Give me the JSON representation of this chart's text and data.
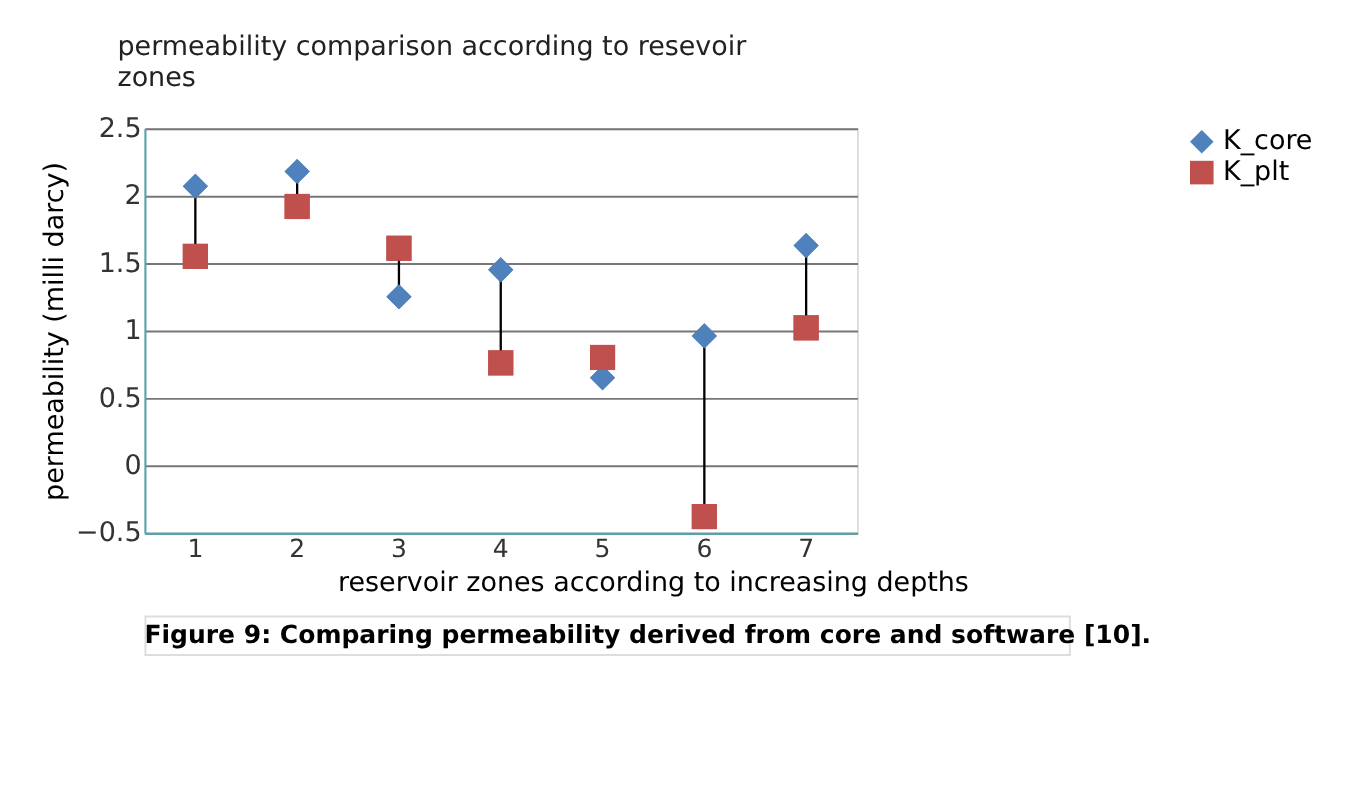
{
  "chart_data": {
    "type": "scatter",
    "title": [
      "permeability comparison according to resevoir",
      "zones"
    ],
    "xlabel": "reservoir zones according to increasing depths",
    "ylabel": "permeability (milli darcy)",
    "categories": [
      "1",
      "2",
      "3",
      "4",
      "5",
      "6",
      "7"
    ],
    "series": [
      {
        "name": "K_core",
        "color": "#4f81bd",
        "marker": "diamond",
        "values": [
          2.07,
          2.18,
          1.25,
          1.45,
          0.65,
          0.96,
          1.63
        ]
      },
      {
        "name": "K_plt",
        "color": "#c0504d",
        "marker": "square",
        "values": [
          1.55,
          1.92,
          1.61,
          0.76,
          0.8,
          -0.38,
          1.02
        ]
      }
    ],
    "ylim": [
      -0.5,
      2.5
    ],
    "yticks": [
      -0.5,
      0,
      0.5,
      1,
      1.5,
      2,
      2.5
    ],
    "grid": "y",
    "legend": "right",
    "annotations": [
      "Figure 9: Comparing permeability derived from core and software [10]."
    ]
  }
}
